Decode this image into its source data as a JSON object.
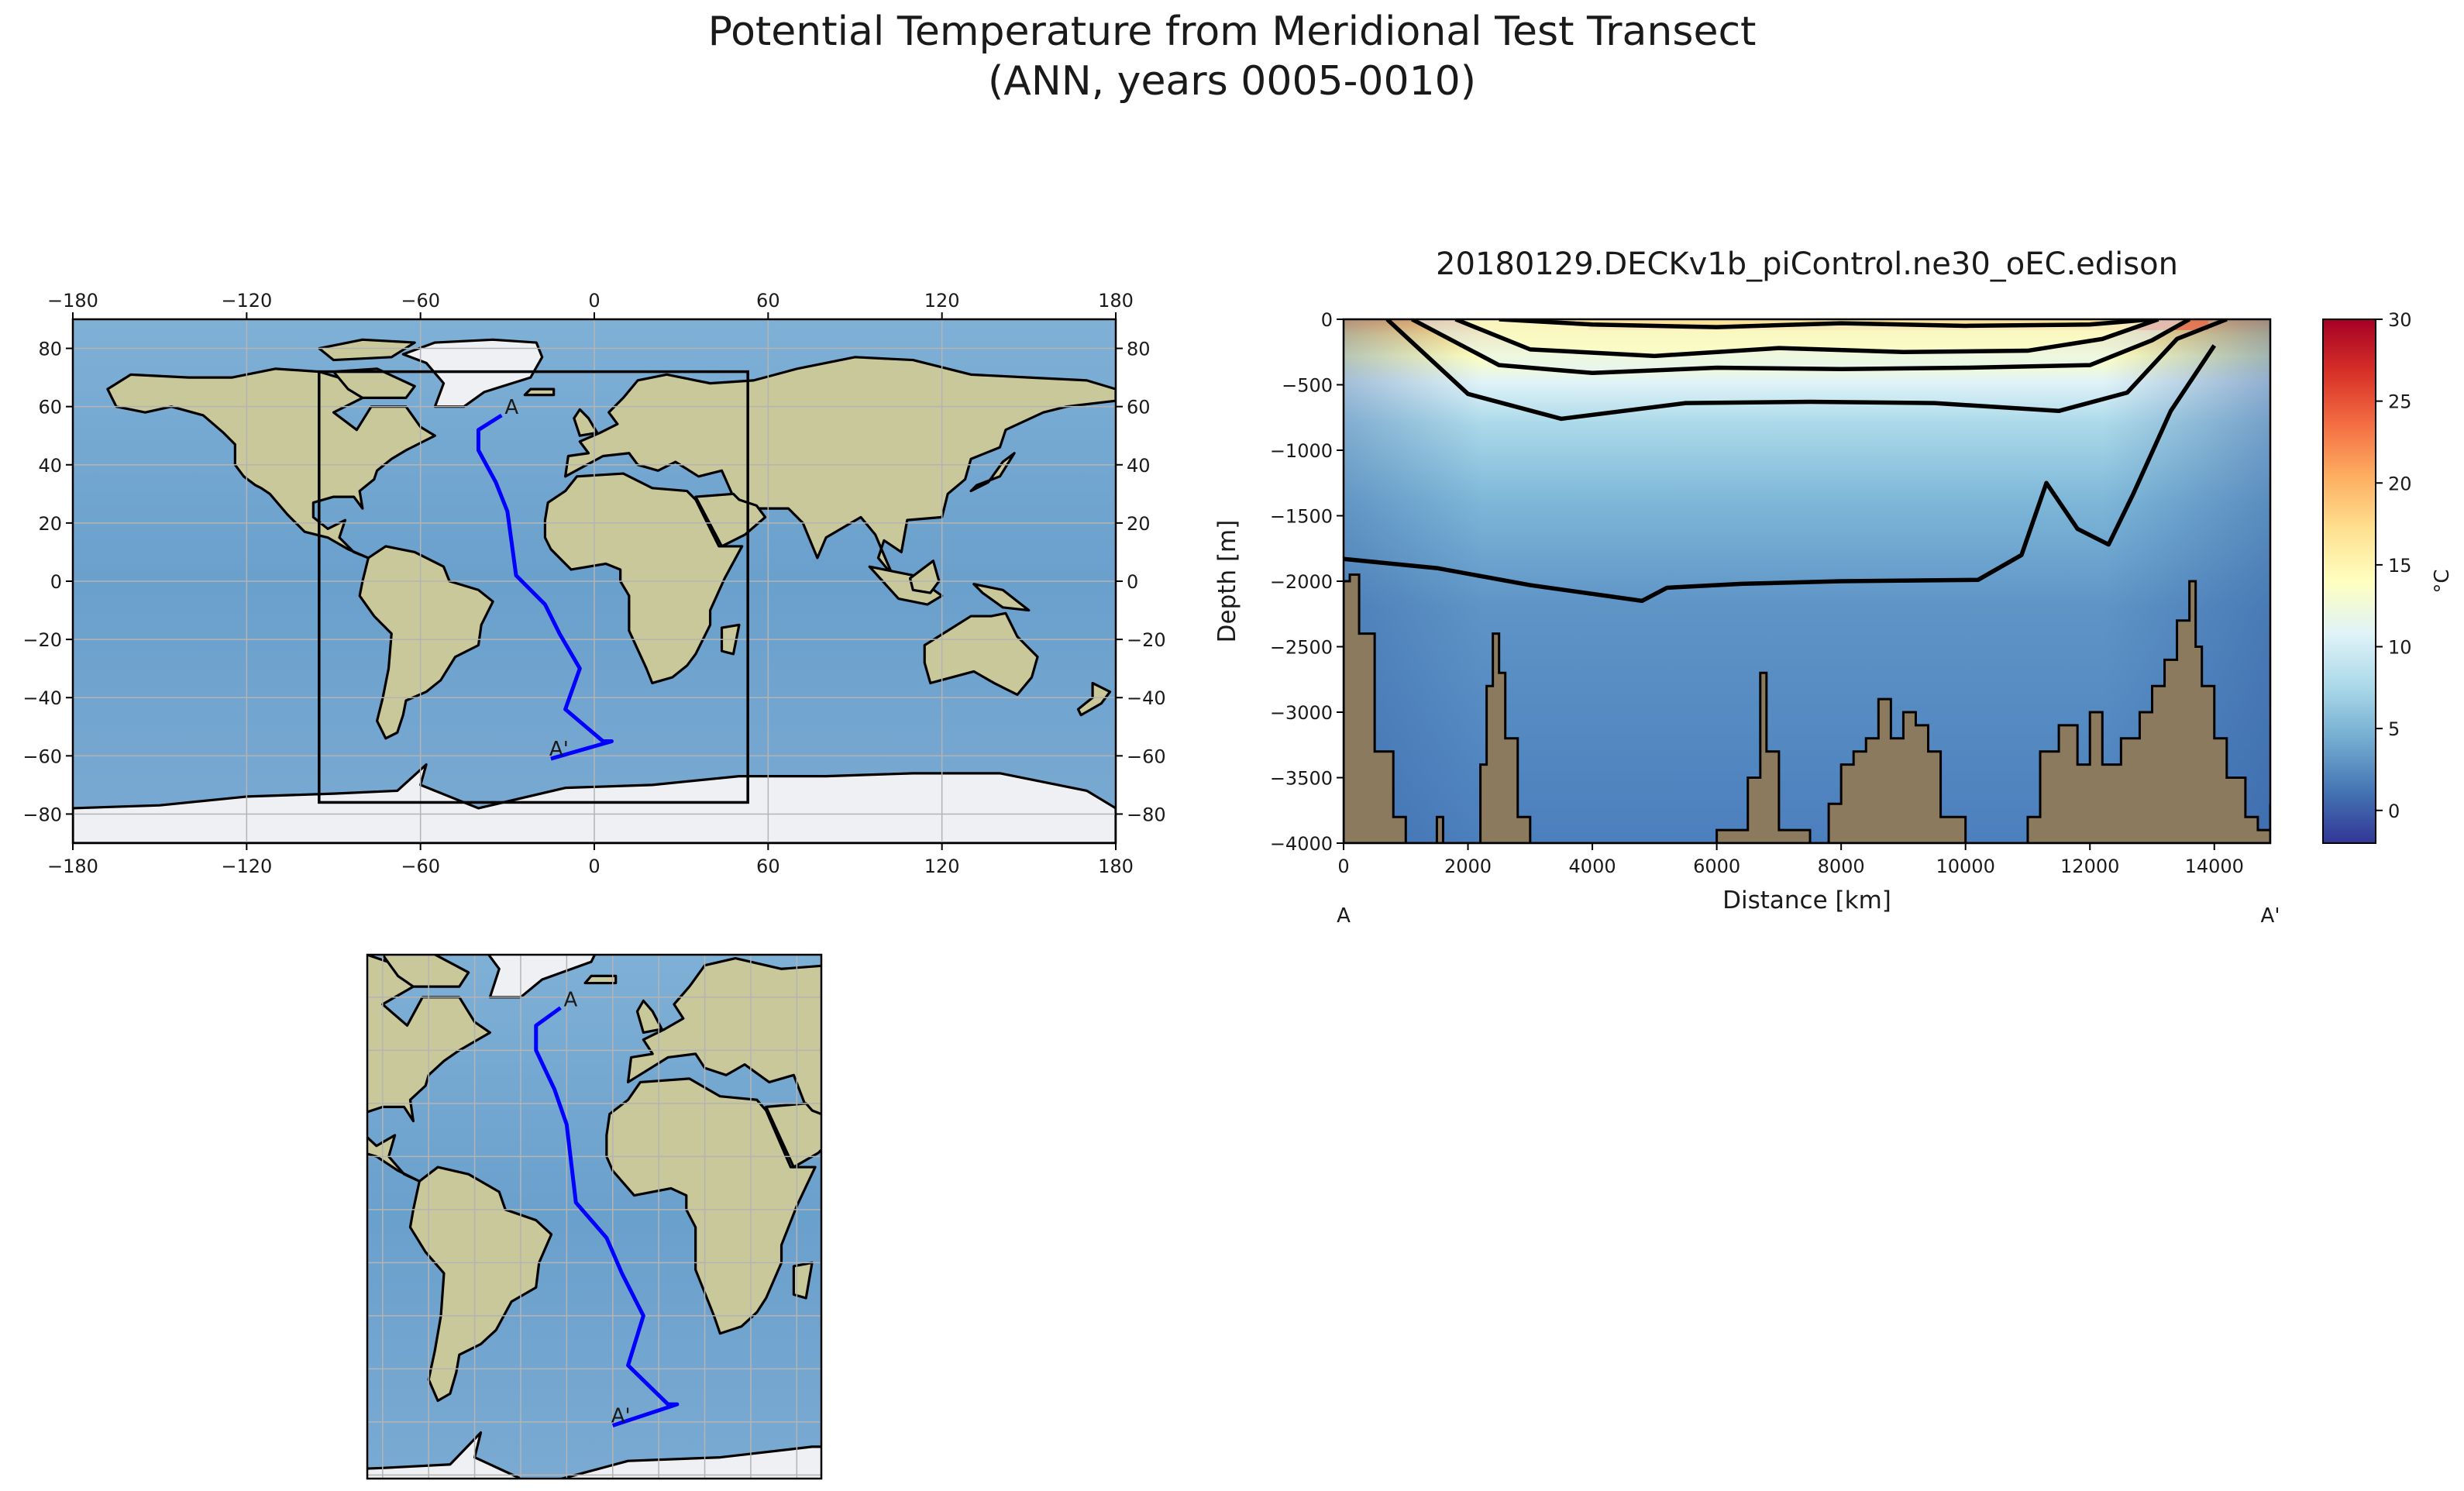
{
  "figure": {
    "title_line1": "Potential Temperature from Meridional Test Transect",
    "title_line2": "(ANN, years 0005-0010)"
  },
  "colors": {
    "ocean": "#6fa4cf",
    "land": "#c8c89a",
    "ice": "#eef0f3",
    "transect": "#0000ff",
    "seafloor": "#8c7a5e",
    "grid": "#b4b4b4"
  },
  "chart_data": [
    {
      "type": "map",
      "panel": "global-map",
      "projection": "PlateCarree",
      "xlim": [
        -180,
        180
      ],
      "ylim": [
        -90,
        90
      ],
      "xticks": [
        -180,
        -120,
        -60,
        0,
        60,
        120,
        180
      ],
      "yticks": [
        -80,
        -60,
        -40,
        -20,
        0,
        20,
        40,
        60,
        80
      ],
      "xtick_labels": [
        "−180",
        "−120",
        "−60",
        "0",
        "60",
        "120",
        "180"
      ],
      "ytick_labels": [
        "−80",
        "−60",
        "−40",
        "−20",
        "0",
        "20",
        "40",
        "60",
        "80"
      ],
      "grid": true,
      "zoom_box": {
        "lon": [
          -95,
          53
        ],
        "lat": [
          -76,
          72
        ]
      },
      "transect": {
        "lon": [
          -32,
          -40,
          -40,
          -34,
          -30,
          -27,
          -17,
          -12,
          -5,
          -10,
          3,
          6,
          6,
          -15
        ],
        "lat": [
          57,
          52,
          45,
          34,
          24,
          2,
          -8,
          -18,
          -30,
          -44,
          -55,
          -55,
          -55,
          -61
        ]
      },
      "labels": {
        "start": "A",
        "end": "A'"
      }
    },
    {
      "type": "heatmap",
      "panel": "transect-section",
      "title": "20180129.DECKv1b_piControl.ne30_oEC.edison",
      "xlabel": "Distance [km]",
      "ylabel": "Depth [m]",
      "xlim": [
        0,
        14900
      ],
      "ylim": [
        -4000,
        0
      ],
      "xticks": [
        0,
        2000,
        4000,
        6000,
        8000,
        10000,
        12000,
        14000
      ],
      "yticks": [
        0,
        -500,
        -1000,
        -1500,
        -2000,
        -2500,
        -3000,
        -3500,
        -4000
      ],
      "xtick_labels": [
        "0",
        "2000",
        "4000",
        "6000",
        "8000",
        "10000",
        "12000",
        "14000"
      ],
      "ytick_labels": [
        "0",
        "−500",
        "−1000",
        "−1500",
        "−2000",
        "−2500",
        "−3000",
        "−3500",
        "−4000"
      ],
      "colorbar": {
        "label": "°C",
        "vmin": -2,
        "vmax": 30,
        "ticks": [
          0,
          5,
          10,
          15,
          20,
          25,
          30
        ],
        "tick_labels": [
          "0",
          "5",
          "10",
          "15",
          "20",
          "25",
          "30"
        ],
        "cmap": [
          "#313695",
          "#4575b4",
          "#74add1",
          "#abd9e9",
          "#e0f3f8",
          "#ffffbf",
          "#fee090",
          "#fdae61",
          "#f46d43",
          "#d73027",
          "#a50026"
        ]
      },
      "endpoints": {
        "start": "A",
        "end": "A'"
      },
      "contours": [
        {
          "level_C": 20,
          "x": [
            2500,
            4000,
            6000,
            8000,
            10000,
            12000,
            13000
          ],
          "y": [
            0,
            -40,
            -60,
            -30,
            -50,
            -40,
            0
          ]
        },
        {
          "level_C": 15,
          "x": [
            1800,
            3000,
            5000,
            7000,
            9000,
            11000,
            12200,
            13100
          ],
          "y": [
            0,
            -230,
            -280,
            -220,
            -250,
            -240,
            -150,
            0
          ]
        },
        {
          "level_C": 10,
          "x": [
            1100,
            2500,
            4000,
            6000,
            8000,
            10000,
            12000,
            13000,
            13600
          ],
          "y": [
            0,
            -350,
            -410,
            -370,
            -380,
            -370,
            -350,
            -160,
            0
          ]
        },
        {
          "level_C": 5,
          "x": [
            700,
            2000,
            3500,
            5500,
            7500,
            9500,
            11500,
            12600,
            13400,
            14200
          ],
          "y": [
            0,
            -570,
            -760,
            -640,
            -630,
            -640,
            -700,
            -560,
            -150,
            0
          ]
        },
        {
          "level_C": 3,
          "x": [
            0,
            1500,
            3000,
            4800,
            5200,
            6400,
            8000,
            10200,
            10900,
            11300,
            11800,
            12300,
            12700,
            13300,
            14000
          ],
          "y": [
            -1830,
            -1900,
            -2030,
            -2150,
            -2050,
            -2020,
            -2000,
            -1990,
            -1800,
            -1250,
            -1600,
            -1720,
            -1330,
            -700,
            -200
          ]
        }
      ],
      "seafloor_depth": {
        "x": [
          0,
          100,
          250,
          500,
          800,
          1000,
          1400,
          1500,
          1600,
          2000,
          2200,
          2300,
          2400,
          2500,
          2600,
          2800,
          3000,
          3500,
          4500,
          5500,
          6000,
          6500,
          6700,
          6800,
          7000,
          7500,
          7800,
          8000,
          8200,
          8400,
          8600,
          8800,
          9000,
          9200,
          9400,
          9600,
          10000,
          10500,
          11000,
          11200,
          11500,
          11800,
          12000,
          12200,
          12500,
          12800,
          13000,
          13200,
          13400,
          13600,
          13700,
          13800,
          14000,
          14200,
          14500,
          14700,
          14900
        ],
        "y": [
          -2000,
          -1950,
          -2400,
          -3300,
          -3800,
          -4000,
          -4000,
          -3800,
          -4000,
          -4000,
          -3400,
          -2800,
          -2400,
          -2700,
          -3200,
          -3800,
          -4000,
          -4000,
          -4000,
          -4000,
          -3900,
          -3500,
          -2700,
          -3300,
          -3900,
          -4000,
          -3700,
          -3400,
          -3300,
          -3200,
          -2900,
          -3200,
          -3000,
          -3100,
          -3300,
          -3800,
          -4000,
          -4000,
          -3800,
          -3300,
          -3100,
          -3400,
          -3000,
          -3400,
          -3200,
          -3000,
          -2800,
          -2600,
          -2300,
          -2000,
          -2500,
          -2800,
          -3200,
          -3500,
          -3800,
          -3900,
          -3700
        ]
      }
    },
    {
      "type": "map",
      "panel": "zoom-map",
      "projection": "PlateCarree",
      "extent_lon": [
        -95,
        53
      ],
      "extent_lat": [
        -76,
        72
      ],
      "grid": true,
      "transect": {
        "lon": [
          -32,
          -40,
          -40,
          -34,
          -30,
          -27,
          -17,
          -12,
          -5,
          -10,
          3,
          6,
          6,
          -15
        ],
        "lat": [
          57,
          52,
          45,
          34,
          24,
          2,
          -8,
          -18,
          -30,
          -44,
          -55,
          -55,
          -55,
          -61
        ]
      },
      "labels": {
        "start": "A",
        "end": "A'"
      }
    }
  ]
}
